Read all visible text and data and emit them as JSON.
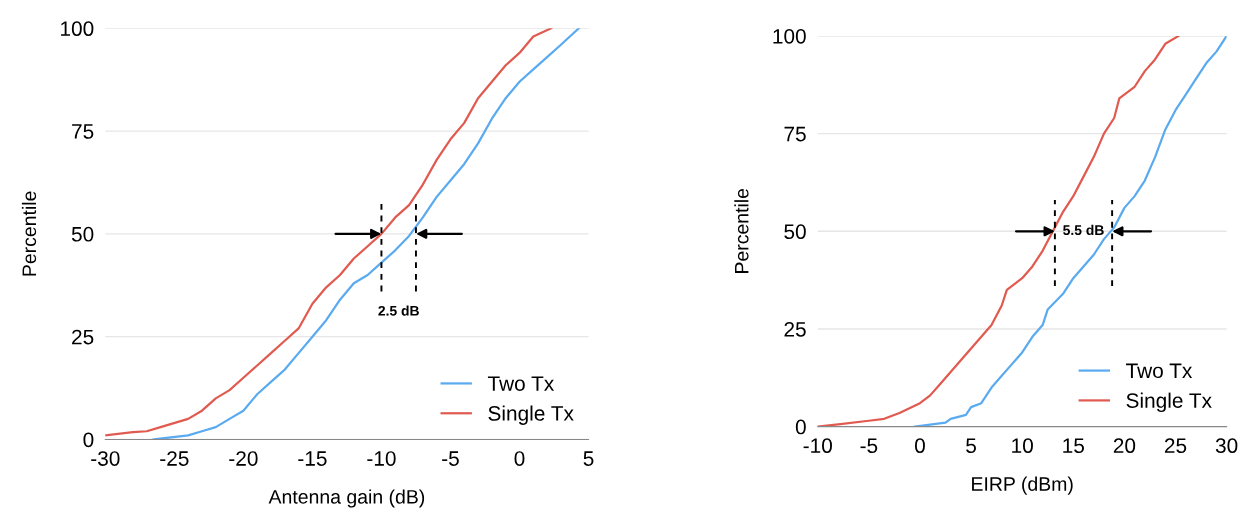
{
  "chart_data": [
    {
      "type": "line",
      "xlabel": "Antenna gain (dB)",
      "ylabel": "Percentile",
      "xlim": [
        -30,
        5
      ],
      "xticks": [
        -30,
        -25,
        -20,
        -15,
        -10,
        -5,
        0,
        5
      ],
      "ylim": [
        0,
        100
      ],
      "yticks": [
        0,
        25,
        50,
        75,
        100
      ],
      "grid": "y",
      "legend": "bottom right",
      "line_style": "solid",
      "series": [
        {
          "name": "Two Tx",
          "color": "#5aaaf0",
          "x": [
            -26.5,
            -24,
            -23,
            -22,
            -21,
            -20,
            -19,
            -18,
            -17,
            -16,
            -15,
            -14,
            -13,
            -12,
            -11,
            -10,
            -9,
            -8,
            -7,
            -6,
            -5,
            -4,
            -3,
            -2,
            -1,
            0,
            1,
            2,
            3,
            4.3
          ],
          "values": [
            0,
            1,
            2,
            3,
            5,
            7,
            11,
            14,
            17,
            21,
            25,
            29,
            34,
            38,
            40,
            43,
            46,
            49.5,
            54,
            59,
            63,
            67,
            72,
            78,
            83,
            87,
            90,
            93,
            96,
            100
          ]
        },
        {
          "name": "Single Tx",
          "color": "#e05a50",
          "x": [
            -30,
            -28,
            -27,
            -26,
            -24,
            -23,
            -22,
            -21,
            -20,
            -19,
            -18,
            -17,
            -16,
            -15,
            -14,
            -13,
            -12,
            -11,
            -10,
            -9,
            -8,
            -7,
            -6,
            -5,
            -4,
            -3,
            -2,
            -1,
            0,
            1,
            2.3
          ],
          "values": [
            1,
            1.8,
            2,
            3,
            5,
            7,
            10,
            12,
            15,
            18,
            21,
            24,
            27,
            33,
            37,
            40,
            44,
            47,
            50,
            54,
            57,
            62,
            68,
            73,
            77,
            83,
            87,
            91,
            94,
            98,
            100
          ]
        }
      ],
      "ref_lines": [
        {
          "axis": "x",
          "value": -10,
          "color": "#000000",
          "line_style": "dashed"
        },
        {
          "axis": "x",
          "value": -7.5,
          "color": "#000000",
          "line_style": "dashed"
        }
      ],
      "annotations": [
        "2.5 dB"
      ]
    },
    {
      "type": "line",
      "xlabel": "EIRP (dBm)",
      "ylabel": "Percentile",
      "xlim": [
        -10,
        30
      ],
      "xticks": [
        -10,
        -5,
        0,
        5,
        10,
        15,
        20,
        25,
        30
      ],
      "ylim": [
        0,
        100
      ],
      "yticks": [
        0,
        25,
        50,
        75,
        100
      ],
      "grid": "y",
      "legend": "bottom right",
      "line_style": "solid",
      "series": [
        {
          "name": "Two Tx",
          "color": "#5aaaf0",
          "x": [
            -0.5,
            2.5,
            3,
            4.5,
            5,
            6,
            7,
            8,
            9,
            10,
            11,
            12,
            12.5,
            14,
            15,
            16,
            17,
            18,
            19,
            20,
            21,
            22,
            23,
            24,
            25,
            26,
            27,
            28,
            29,
            30
          ],
          "values": [
            0,
            1,
            2,
            3,
            5,
            6,
            10,
            13,
            16,
            19,
            23,
            26,
            30,
            34,
            38,
            41,
            44,
            48,
            51,
            56,
            59,
            63,
            69,
            76,
            81,
            85,
            89,
            93,
            96,
            100
          ]
        },
        {
          "name": "Single Tx",
          "color": "#e05a50",
          "x": [
            -10,
            -8,
            -5,
            -3.5,
            -2,
            0,
            1,
            2,
            3,
            4,
            5,
            6,
            7,
            8,
            8.5,
            10,
            11,
            12,
            13,
            14,
            15,
            16,
            17,
            18,
            19,
            19.5,
            21,
            22,
            23,
            24,
            25.3
          ],
          "values": [
            0,
            0.6,
            1.5,
            2,
            3.5,
            6,
            8,
            11,
            14,
            17,
            20,
            23,
            26,
            31,
            35,
            38,
            41,
            45,
            50,
            55,
            59,
            64,
            69,
            75,
            79,
            84,
            87,
            91,
            94,
            98,
            100
          ]
        }
      ],
      "ref_lines": [
        {
          "axis": "x",
          "value": 13.2,
          "color": "#000000",
          "line_style": "dashed"
        },
        {
          "axis": "x",
          "value": 18.8,
          "color": "#000000",
          "line_style": "dashed"
        }
      ],
      "annotations": [
        "5.5 dB"
      ]
    }
  ]
}
